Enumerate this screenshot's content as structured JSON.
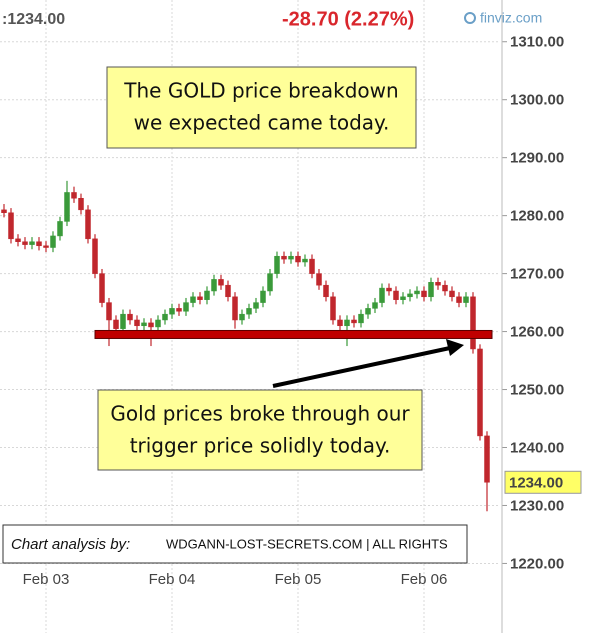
{
  "chart_data": {
    "type": "candlestick",
    "header_price": ":1234.00",
    "change": "-28.70 (2.27%)",
    "source": "finviz.com",
    "categories": [
      null,
      null,
      null,
      null,
      null,
      null,
      "Feb 03",
      null,
      null,
      null,
      null,
      null,
      null,
      null,
      null,
      null,
      null,
      null,
      null,
      null,
      null,
      null,
      null,
      null,
      "Feb 04",
      null,
      null,
      null,
      null,
      null,
      null,
      null,
      null,
      null,
      null,
      null,
      null,
      null,
      null,
      null,
      null,
      null,
      "Feb 05",
      null,
      null,
      null,
      null,
      null,
      null,
      null,
      null,
      null,
      null,
      null,
      null,
      null,
      null,
      null,
      null,
      null,
      "Feb 06",
      null,
      null,
      null,
      null,
      null,
      null,
      null,
      null,
      null
    ],
    "open": [
      1281,
      1280.5,
      1276,
      1275.5,
      1275,
      1275.5,
      1274.8,
      1274.5,
      1276.5,
      1279,
      1284,
      1283,
      1281,
      1276,
      1270,
      1265,
      1262,
      1260.5,
      1263,
      1262,
      1261,
      1261.5,
      1260.8,
      1262,
      1263,
      1264,
      1263.5,
      1265,
      1266,
      1265.5,
      1267,
      1269,
      1268,
      1266,
      1262,
      1263,
      1264,
      1265,
      1267,
      1270,
      1273,
      1272.5,
      1273,
      1272,
      1272.5,
      1270,
      1268,
      1266,
      1262,
      1261,
      1262,
      1261.5,
      1263,
      1264,
      1265,
      1267.5,
      1267,
      1265.5,
      1266,
      1266.5,
      1267,
      1266,
      1268.5,
      1268,
      1267,
      1266,
      1265,
      1266,
      1257,
      1242
    ],
    "high": [
      1282,
      1281.3,
      1276.8,
      1276.3,
      1276.3,
      1276.3,
      1275.6,
      1277.3,
      1279.8,
      1286,
      1285,
      1283.8,
      1281.8,
      1276.8,
      1270.8,
      1265.8,
      1262.8,
      1263.8,
      1263.8,
      1262.8,
      1262.3,
      1262.3,
      1262.8,
      1263.8,
      1264.8,
      1264.8,
      1265.8,
      1266.8,
      1266.8,
      1267.8,
      1269.8,
      1269.8,
      1268.8,
      1266.8,
      1263.8,
      1264.8,
      1265.8,
      1267.8,
      1270.8,
      1273.8,
      1273.8,
      1273.8,
      1273.8,
      1273.3,
      1273.3,
      1270.8,
      1268.8,
      1266.8,
      1262.8,
      1262.8,
      1262.8,
      1263.8,
      1264.8,
      1265.8,
      1268.3,
      1268.3,
      1267.8,
      1266.8,
      1267.3,
      1267.8,
      1267.8,
      1269.3,
      1269.3,
      1268.8,
      1267.8,
      1266.8,
      1266.8,
      1266.8,
      1257.8,
      1242.8
    ],
    "low": [
      1279.7,
      1275.2,
      1274.7,
      1274.2,
      1274.2,
      1274,
      1273.7,
      1273.7,
      1275.7,
      1278.2,
      1282.2,
      1280.2,
      1275.2,
      1269.2,
      1264.2,
      1257.5,
      1259.7,
      1259.7,
      1261.2,
      1260.2,
      1260.2,
      1257.5,
      1260,
      1261.2,
      1262.2,
      1262.7,
      1262.7,
      1264.2,
      1264.7,
      1264.7,
      1266.2,
      1267.2,
      1265.2,
      1260.5,
      1261.2,
      1262.2,
      1263.2,
      1264.2,
      1266.2,
      1269.2,
      1271.7,
      1271.7,
      1271.2,
      1271.2,
      1269.2,
      1267.2,
      1265.2,
      1261.2,
      1260.2,
      1257.5,
      1260.7,
      1260.7,
      1262.2,
      1263.2,
      1264.2,
      1266.2,
      1264.7,
      1264.7,
      1265.2,
      1265.7,
      1265.2,
      1265.2,
      1267.2,
      1266.2,
      1265.2,
      1264.2,
      1264.2,
      1256.2,
      1241.2,
      1229
    ],
    "close": [
      1280.5,
      1276,
      1275.5,
      1275,
      1275.5,
      1274.8,
      1274.5,
      1276.5,
      1279,
      1284,
      1283,
      1281,
      1276,
      1270,
      1265,
      1262,
      1260.5,
      1263,
      1262,
      1261,
      1261.5,
      1260.8,
      1262,
      1263,
      1264,
      1263.5,
      1265,
      1266,
      1265.5,
      1267,
      1269,
      1268,
      1266,
      1262,
      1263,
      1264,
      1265,
      1267,
      1270,
      1273,
      1272.5,
      1273,
      1272,
      1272.5,
      1270,
      1268,
      1266,
      1262,
      1261,
      1262,
      1261.5,
      1263,
      1264,
      1265,
      1267.5,
      1267,
      1265.5,
      1266,
      1266.5,
      1267,
      1266,
      1268.5,
      1268,
      1267,
      1266,
      1265,
      1266,
      1257,
      1242,
      1234
    ],
    "up_color": "#3a9a3a",
    "down_color": "#c0272d",
    "ylim": [
      1208,
      1317.2
    ],
    "yticks": [
      {
        "value": 1310,
        "label": "1310.00"
      },
      {
        "value": 1300,
        "label": "1300.00"
      },
      {
        "value": 1290,
        "label": "1290.00"
      },
      {
        "value": 1280,
        "label": "1280.00"
      },
      {
        "value": 1270,
        "label": "1270.00"
      },
      {
        "value": 1260,
        "label": "1260.00"
      },
      {
        "value": 1250,
        "label": "1250.00"
      },
      {
        "value": 1240,
        "label": "1240.00"
      },
      {
        "value": 1230,
        "label": "1230.00"
      },
      {
        "value": 1220,
        "label": "1220.00"
      }
    ],
    "last_price": {
      "value": 1234,
      "label": "1234.00"
    },
    "support_level": 1259.5,
    "support_color": "#c00000",
    "grid": true,
    "annotations": [
      {
        "lines": [
          "The GOLD price breakdown",
          "we expected came today."
        ]
      },
      {
        "lines": [
          "Gold prices broke through our",
          "trigger price solidly today."
        ]
      }
    ],
    "footer": {
      "prefix": "Chart analysis by:",
      "text": "WDGANN-LOST-SECRETS.COM | ALL RIGHTS"
    }
  }
}
